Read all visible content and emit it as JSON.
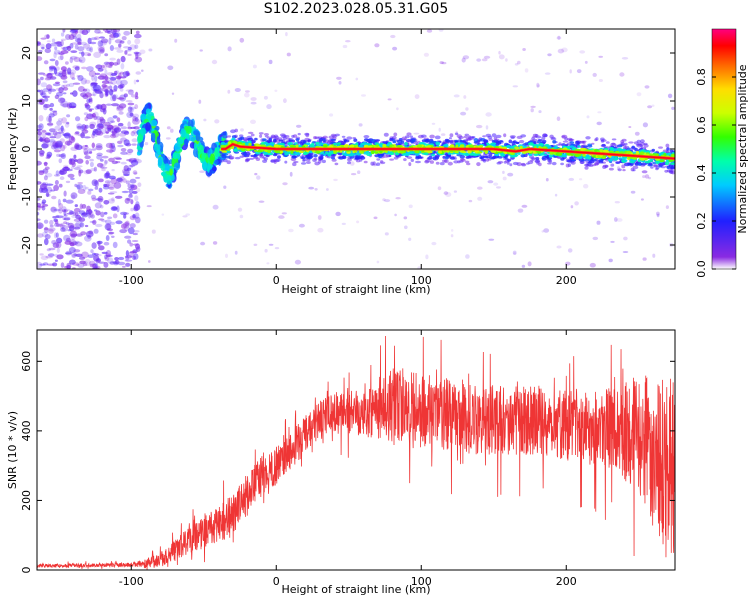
{
  "title": "S102.2023.028.05.31.G05",
  "chart_data": [
    {
      "type": "heatmap",
      "xlabel": "Height of straight line (km)",
      "ylabel": "Frequency (Hz)",
      "xlim": [
        -165,
        275
      ],
      "ylim": [
        -25,
        25
      ],
      "xticks": [
        -100,
        0,
        100,
        200
      ],
      "xtick_labels": [
        "-100",
        "0",
        "100",
        "200"
      ],
      "yticks": [
        -20,
        -10,
        0,
        10,
        20
      ],
      "ytick_labels": [
        "-20",
        "-10",
        "0",
        "10",
        "20"
      ],
      "colorbar": {
        "label": "Normalized spectral amplitude",
        "range": [
          0,
          1
        ],
        "ticks": [
          0.0,
          0.2,
          0.4,
          0.6,
          0.8
        ],
        "tick_labels": [
          "0.0",
          "0.2",
          "0.4",
          "0.6",
          "0.8"
        ],
        "colormap": "rainbow (violet to red/magenta)"
      },
      "ridge": {
        "description": "dominant frequency track (normalized amplitude ~0.9-1.0)",
        "x": [
          -35,
          -30,
          -25,
          0,
          50,
          100,
          150,
          165,
          175,
          200,
          225,
          250,
          275
        ],
        "y": [
          0,
          1,
          0.5,
          0,
          0,
          0,
          0,
          -0.5,
          0,
          -0.5,
          -1,
          -1.5,
          -2
        ]
      },
      "noise_region": {
        "x_range": [
          -165,
          -100
        ],
        "y_range": [
          -25,
          25
        ],
        "amplitude": "low (0.0-0.2)"
      },
      "oscillation_region": {
        "x_range": [
          -95,
          -35
        ],
        "y_range": [
          -8,
          8
        ]
      }
    },
    {
      "type": "line",
      "xlabel": "Height of straight line (km)",
      "ylabel": "SNR (10 * v/v)",
      "xlim": [
        -165,
        275
      ],
      "ylim": [
        0,
        690
      ],
      "xticks": [
        -100,
        0,
        100,
        200
      ],
      "xtick_labels": [
        "-100",
        "0",
        "100",
        "200"
      ],
      "yticks": [
        0,
        200,
        400,
        600
      ],
      "ytick_labels": [
        "0",
        "200",
        "400",
        "600"
      ],
      "line_color": "#ef3535",
      "trend": {
        "x": [
          -165,
          -100,
          -90,
          -80,
          -70,
          -60,
          -50,
          -40,
          -30,
          -20,
          -10,
          0,
          10,
          20,
          30,
          40,
          50,
          60,
          70,
          80,
          90,
          100,
          120,
          140,
          160,
          180,
          200,
          220,
          240,
          250,
          260,
          270,
          275
        ],
        "y": [
          12,
          15,
          18,
          30,
          55,
          85,
          110,
          130,
          160,
          220,
          270,
          300,
          340,
          390,
          430,
          450,
          460,
          460,
          465,
          470,
          470,
          460,
          440,
          430,
          430,
          430,
          420,
          410,
          400,
          380,
          340,
          310,
          300
        ]
      },
      "spread": {
        "x": [
          -165,
          -100,
          -80,
          -60,
          -40,
          -20,
          0,
          20,
          40,
          60,
          80,
          100,
          140,
          180,
          220,
          240,
          260,
          275
        ],
        "y": [
          5,
          6,
          20,
          40,
          55,
          60,
          55,
          55,
          60,
          75,
          110,
          110,
          100,
          100,
          110,
          140,
          220,
          260
        ]
      }
    }
  ]
}
